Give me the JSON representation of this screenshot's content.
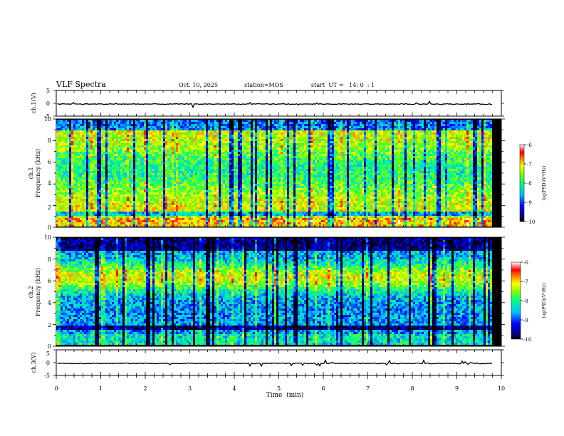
{
  "header": {
    "title": "VLF Spectra",
    "date": "Oct. 10, 2025",
    "station": "station=MOS",
    "start_ut": "start  UT =   14: 0  : 1"
  },
  "chart_data": [
    {
      "id": "ch1_waveform",
      "type": "line",
      "ylabel": "ch.1(V)",
      "ylim": [
        -5,
        5
      ],
      "yticks": [
        "5",
        "0",
        "-5"
      ],
      "xlim": [
        0,
        10
      ],
      "description_values": {
        "baseline_v": -0.3,
        "x_end_min": 9.82
      }
    },
    {
      "id": "ch1_spectrogram",
      "type": "heatmap",
      "ylabel_line1": "ch.1",
      "ylabel_line2": "Frequency (kHz)",
      "ylim": [
        0,
        10
      ],
      "yticks": [
        "0",
        "2",
        "4",
        "6",
        "8",
        "10"
      ],
      "xlim": [
        0,
        10
      ],
      "x_end_min": 9.82,
      "colorbar": {
        "range": [
          -10,
          -6
        ],
        "ticks": [
          "-6",
          "-7",
          "-8",
          "-9",
          "-10"
        ],
        "label": "log(PSD)(V²/Hz)"
      }
    },
    {
      "id": "ch2_spectrogram",
      "type": "heatmap",
      "ylabel_line1": "ch.2",
      "ylabel_line2": "Frequency (kHz)",
      "ylim": [
        0,
        10
      ],
      "yticks": [
        "0",
        "2",
        "4",
        "6",
        "8",
        "10"
      ],
      "xlim": [
        0,
        10
      ],
      "x_end_min": 9.82,
      "colorbar": {
        "range": [
          -10,
          -6
        ],
        "ticks": [
          "-6",
          "-7",
          "-8",
          "-9",
          "-10"
        ],
        "label": "log(PSD)(V²/Hz)"
      }
    },
    {
      "id": "ch3_waveform",
      "type": "line",
      "ylabel": "ch.3(V)",
      "ylim": [
        -5,
        5
      ],
      "yticks": [
        "5",
        "0",
        "-5"
      ],
      "xlim": [
        0,
        10
      ],
      "description_values": {
        "baseline_v": -0.3,
        "x_end_min": 9.82
      }
    }
  ],
  "xaxis": {
    "label": "Time  (min)",
    "ticks": [
      "0",
      "1",
      "2",
      "3",
      "4",
      "5",
      "6",
      "7",
      "8",
      "9",
      "10"
    ]
  }
}
